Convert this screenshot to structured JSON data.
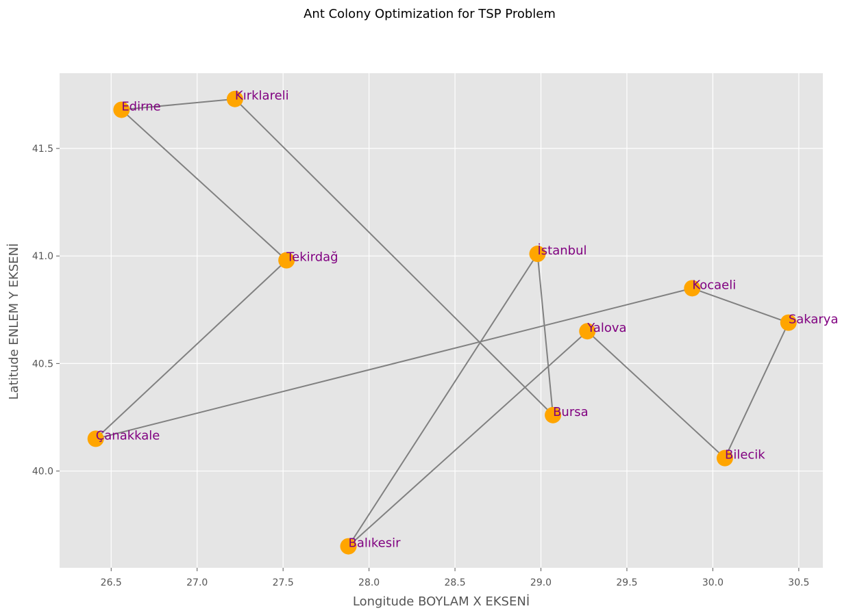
{
  "colors": {
    "plot_background": "#e5e5e5",
    "grid": "#ffffff",
    "route_line": "#808080",
    "point": "#ffa500",
    "label": "#800080"
  },
  "chart_data": {
    "type": "scatter",
    "title": "Ant Colony Optimization for TSP Problem",
    "xlabel": "Longitude BOYLAM X EKSENİ",
    "ylabel": "Latitude ENLEM Y EKSENİ",
    "xlim": [
      26.2,
      30.64
    ],
    "ylim": [
      39.55,
      41.85
    ],
    "xticks": [
      26.5,
      27.0,
      27.5,
      28.0,
      28.5,
      29.0,
      29.5,
      30.0,
      30.5
    ],
    "xtick_labels": [
      "26.5",
      "27.0",
      "27.5",
      "28.0",
      "28.5",
      "29.0",
      "29.5",
      "30.0",
      "30.5"
    ],
    "yticks": [
      40.0,
      40.5,
      41.0,
      41.5
    ],
    "ytick_labels": [
      "40.0",
      "40.5",
      "41.0",
      "41.5"
    ],
    "grid": true,
    "points": [
      {
        "name": "Edirne",
        "x": 26.56,
        "y": 41.68
      },
      {
        "name": "Kırklareli",
        "x": 27.22,
        "y": 41.73
      },
      {
        "name": "Tekirdağ",
        "x": 27.52,
        "y": 40.98
      },
      {
        "name": "İstanbul",
        "x": 28.98,
        "y": 41.01
      },
      {
        "name": "Kocaeli",
        "x": 29.88,
        "y": 40.85
      },
      {
        "name": "Sakarya",
        "x": 30.44,
        "y": 40.69
      },
      {
        "name": "Yalova",
        "x": 29.27,
        "y": 40.65
      },
      {
        "name": "Bursa",
        "x": 29.07,
        "y": 40.26
      },
      {
        "name": "Bilecik",
        "x": 30.07,
        "y": 40.06
      },
      {
        "name": "Çanakkale",
        "x": 26.41,
        "y": 40.15
      },
      {
        "name": "Balıkesir",
        "x": 27.88,
        "y": 39.65
      }
    ],
    "route": [
      "Edirne",
      "Kırklareli",
      "Bursa",
      "İstanbul",
      "Balıkesir",
      "Yalova",
      "Bilecik",
      "Sakarya",
      "Kocaeli",
      "Çanakkale",
      "Tekirdağ",
      "Edirne"
    ]
  }
}
